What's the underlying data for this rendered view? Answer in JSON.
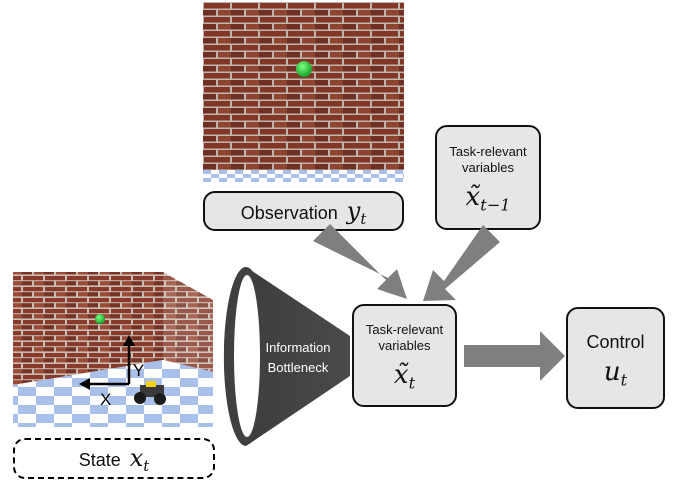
{
  "observation": {
    "label": "Observation",
    "symbol": "y",
    "subscript": "t"
  },
  "prev_task_vars": {
    "label": "Task-relevant variables",
    "symbol": "x̃",
    "subscript": "t−1"
  },
  "current_task_vars": {
    "label": "Task-relevant variables",
    "symbol": "x̃",
    "subscript": "t"
  },
  "bottleneck": {
    "label": "Information Bottleneck"
  },
  "control": {
    "label": "Control",
    "symbol": "u",
    "subscript": "t"
  },
  "state": {
    "label": "State",
    "symbol": "x",
    "subscript": "t"
  },
  "axes": {
    "y_label": "Y",
    "x_label": "X"
  },
  "colors": {
    "box_fill": "#e6e6e6",
    "arrow": "#7f7f7f",
    "funnel": "#404040",
    "brick": "#8e3b2a",
    "mortar": "#cfc6bd",
    "floor_blue": "#a9c1ea",
    "ball": "#2ecc40"
  }
}
